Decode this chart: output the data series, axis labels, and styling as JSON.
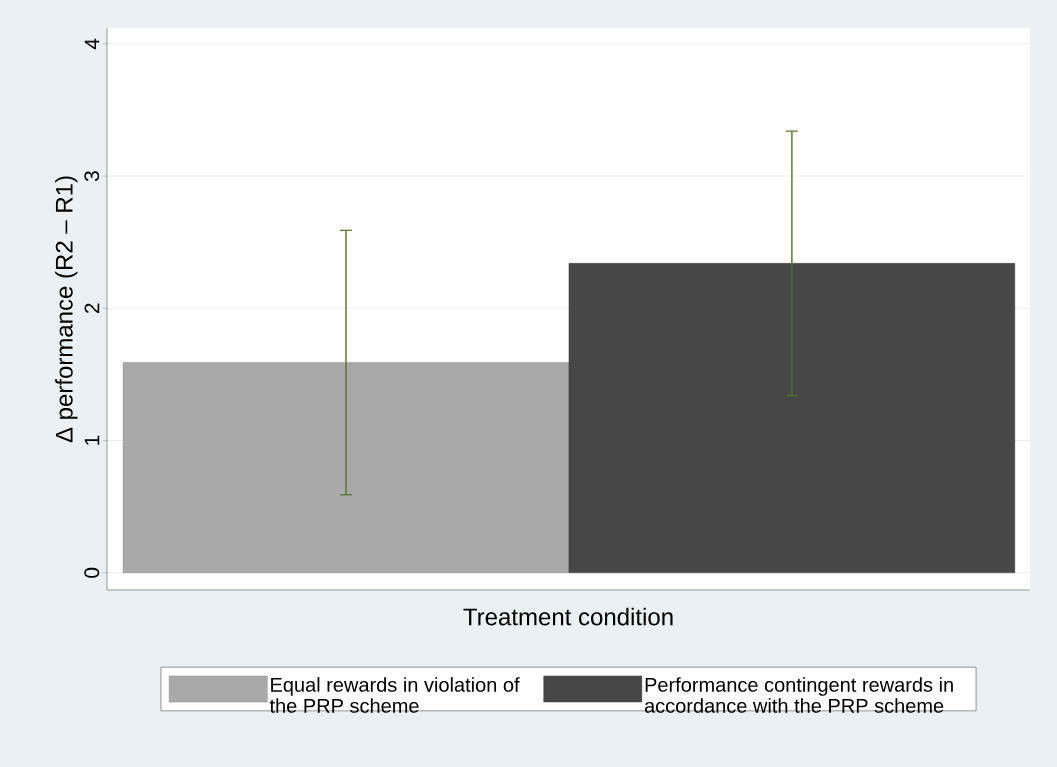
{
  "chart_data": {
    "type": "bar",
    "ylabel": "Δ performance (R2 – R1)",
    "xlabel": "Treatment condition",
    "categories": [
      null,
      null
    ],
    "series": [
      {
        "name": "Equal rewards in violation of the PRP scheme",
        "color": "#a9a9a9",
        "values": [
          1.59,
          null
        ],
        "errors": [
          1.0,
          null
        ]
      },
      {
        "name": "Performance contingent rewards in accordance with the PRP scheme",
        "color": "#474747",
        "values": [
          null,
          2.34
        ],
        "errors": [
          null,
          1.0
        ]
      }
    ],
    "ylim": [
      -0.13,
      4.12
    ],
    "yticks": [
      0,
      1,
      2,
      3,
      4
    ],
    "grid": "y",
    "legend": "bottom"
  }
}
